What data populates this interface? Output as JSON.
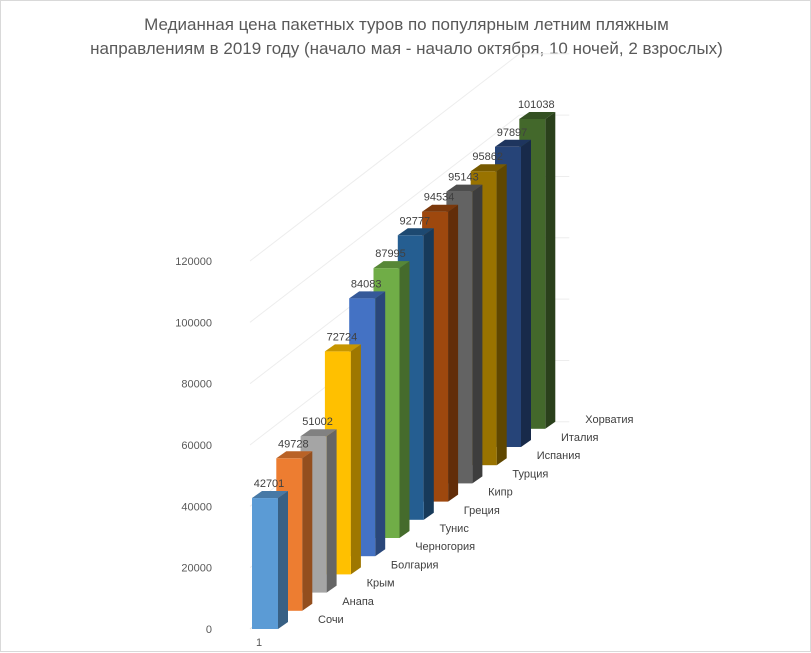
{
  "chart_data": {
    "type": "bar",
    "title_lines": [
      "Медианная цена пакетных туров по популярным летним пляжным",
      "направлениям в 2019 году (начало мая - начало октября, 10 ночей, 2 взрослых)"
    ],
    "x_categories": [
      "1"
    ],
    "ylim": [
      0,
      120000
    ],
    "yticks": [
      0,
      20000,
      40000,
      60000,
      80000,
      100000,
      120000
    ],
    "grid": true,
    "legend": "none",
    "series": [
      {
        "name": "Сочи",
        "value": 42701,
        "label": "42701",
        "color": "#5b9bd5"
      },
      {
        "name": "Анапа",
        "value": 49728,
        "label": "49728",
        "color": "#ed7d31"
      },
      {
        "name": "Крым",
        "value": 51002,
        "label": "51002",
        "color": "#a5a5a5"
      },
      {
        "name": "Болгария",
        "value": 72724,
        "label": "72724",
        "color": "#ffc000"
      },
      {
        "name": "Черногория",
        "value": 84083,
        "label": "84083",
        "color": "#4472c4"
      },
      {
        "name": "Тунис",
        "value": 87995,
        "label": "87995",
        "color": "#70ad47"
      },
      {
        "name": "Греция",
        "value": 92777,
        "label": "92777",
        "color": "#255e91"
      },
      {
        "name": "Кипр",
        "value": 94534,
        "label": "94534",
        "color": "#9e480e"
      },
      {
        "name": "Турция",
        "value": 95143,
        "label": "95143",
        "color": "#636363"
      },
      {
        "name": "Испания",
        "value": 95862,
        "label": "95862",
        "color": "#997300"
      },
      {
        "name": "Италия",
        "value": 97897,
        "label": "97897",
        "color": "#264478"
      },
      {
        "name": "Хорватия",
        "value": 101038,
        "label": "101038",
        "color": "#43682b"
      }
    ]
  }
}
